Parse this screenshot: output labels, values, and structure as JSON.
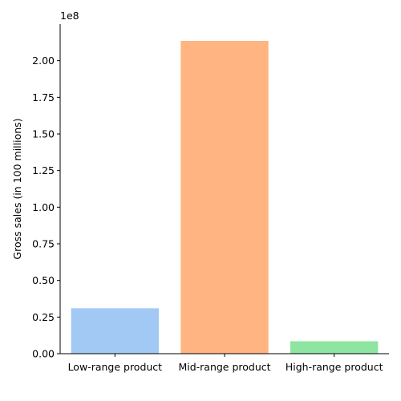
{
  "chart_data": {
    "type": "bar",
    "title": "",
    "xlabel": "",
    "ylabel": "Gross sales (in 100 millions)",
    "offset_label": "1e8",
    "categories": [
      "Low-range product",
      "Mid-range product",
      "High-range product"
    ],
    "values": [
      31000000,
      213500000,
      8500000
    ],
    "colors": [
      "#a1c9f4",
      "#ffb482",
      "#8de5a1"
    ],
    "ylim": [
      0,
      225000000
    ],
    "yticks": [
      0,
      25000000,
      50000000,
      75000000,
      100000000,
      125000000,
      150000000,
      175000000,
      200000000
    ],
    "ytick_labels": [
      "0.00",
      "0.25",
      "0.50",
      "0.75",
      "1.00",
      "1.25",
      "1.50",
      "1.75",
      "2.00"
    ],
    "grid": false,
    "legend": "none"
  }
}
